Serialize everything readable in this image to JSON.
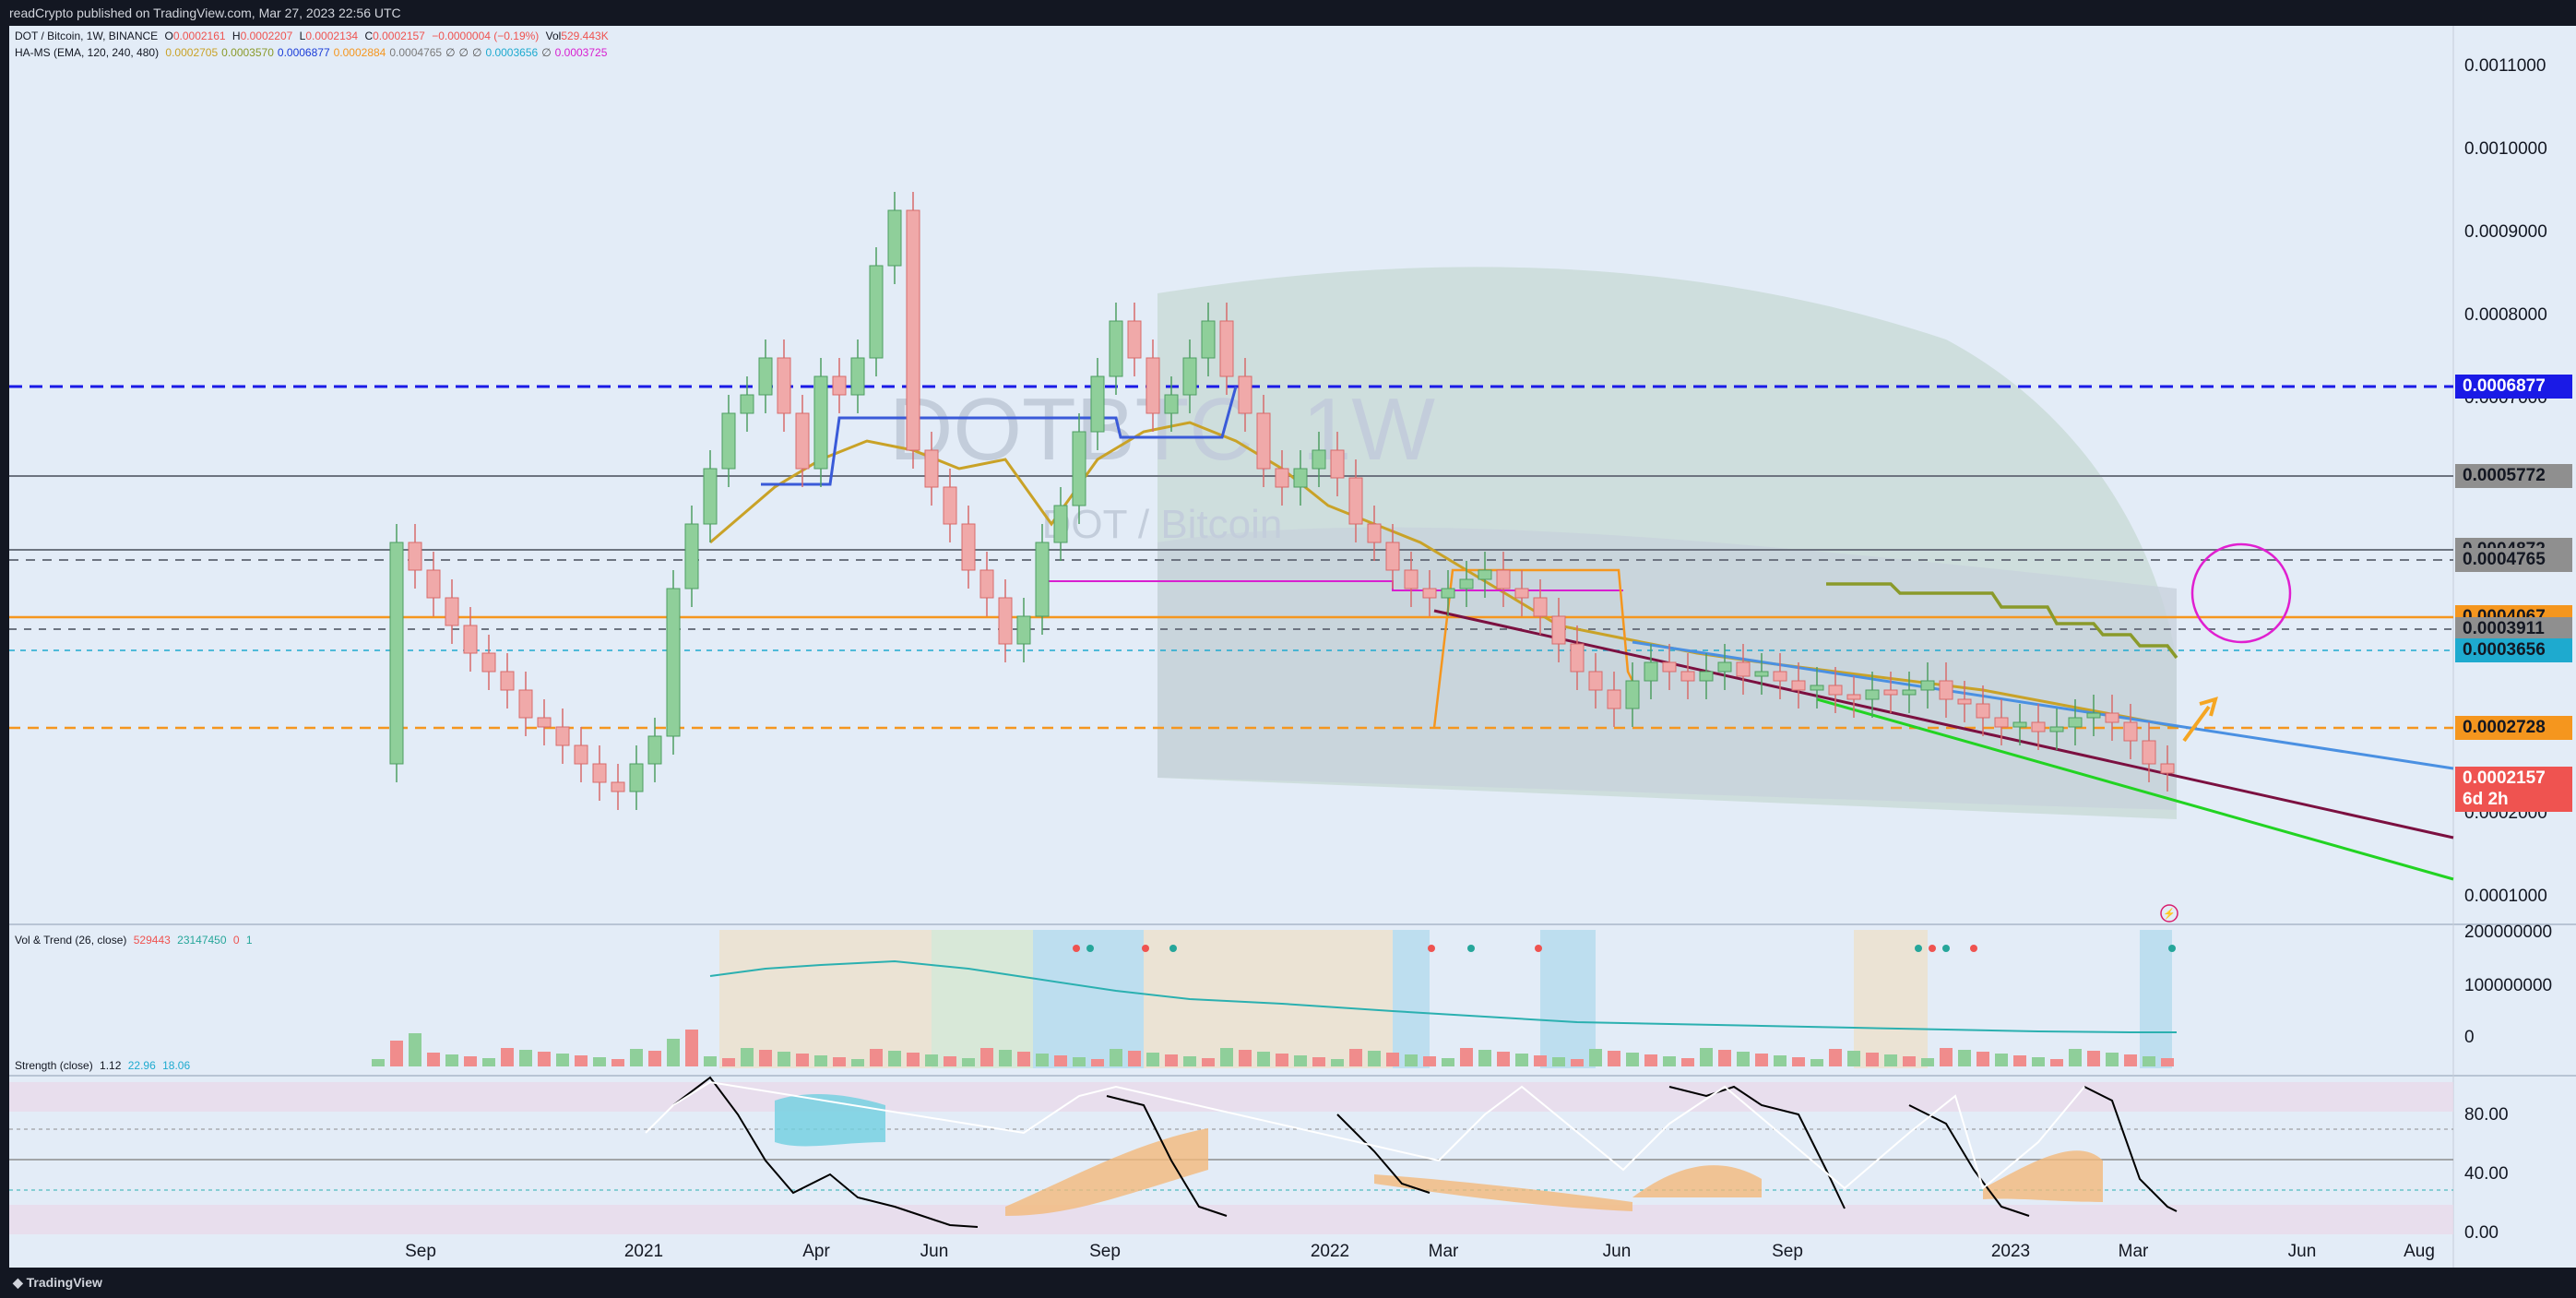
{
  "header": {
    "published": "readCrypto published on TradingView.com, Mar 27, 2023 22:56 UTC"
  },
  "symbol": {
    "name": "DOT / Bitcoin, 1W, BINANCE",
    "open_label": "O",
    "open": "0.0002161",
    "high_label": "H",
    "high": "0.0002207",
    "low_label": "L",
    "low": "0.0002134",
    "close_label": "C",
    "close": "0.0002157",
    "change": "−0.0000004 (−0.19%)",
    "vol_label": "Vol",
    "vol": "529.443K"
  },
  "indicator_hams": {
    "label": "HA-MS (EMA, 120, 240, 480)",
    "values": [
      {
        "v": "0.0002705",
        "color": "#c9a227"
      },
      {
        "v": "0.0003570",
        "color": "#8a9a2a"
      },
      {
        "v": "0.0006877",
        "color": "#1a3cd8"
      },
      {
        "v": "0.0002884",
        "color": "#f5961e"
      },
      {
        "v": "0.0004765",
        "color": "#7a7a7a"
      },
      {
        "v": "∅",
        "color": "#555555"
      },
      {
        "v": "∅",
        "color": "#555555"
      },
      {
        "v": "∅",
        "color": "#555555"
      },
      {
        "v": "0.0003656",
        "color": "#1eaacf"
      },
      {
        "v": "∅",
        "color": "#555555"
      },
      {
        "v": "0.0003725",
        "color": "#d81fd0"
      }
    ]
  },
  "watermark": {
    "big": "DOTBTC, 1W",
    "small": "DOT / Bitcoin"
  },
  "price_axis": {
    "ticks": [
      "0.0011000",
      "0.0010000",
      "0.0009000",
      "0.0008000",
      "0.0007000",
      "0.0006000",
      "0.0005000",
      "0.0004000",
      "0.0003000",
      "0.0002000",
      "0.0001000"
    ],
    "labels": [
      {
        "text": "0.0006877",
        "bg": "#1a1ae6",
        "fg": "#ffffff"
      },
      {
        "text": "0.0005772",
        "bg": "#8f8f8f",
        "fg": "#131722"
      },
      {
        "text": "0.0004872",
        "bg": "#8f8f8f",
        "fg": "#131722"
      },
      {
        "text": "0.0004765",
        "bg": "#8f8f8f",
        "fg": "#131722"
      },
      {
        "text": "0.0004067",
        "bg": "#f5961e",
        "fg": "#131722"
      },
      {
        "text": "0.0003911",
        "bg": "#8f8f8f",
        "fg": "#131722"
      },
      {
        "text": "0.0003656",
        "bg": "#1eaacf",
        "fg": "#131722"
      },
      {
        "text": "0.0002728",
        "bg": "#f5961e",
        "fg": "#131722"
      },
      {
        "text": "0.0002157",
        "bg": "#ef5350",
        "fg": "#ffffff"
      },
      {
        "text": "6d 2h",
        "bg": "#ef5350",
        "fg": "#ffffff"
      }
    ]
  },
  "vol_pane": {
    "label": "Vol & Trend (26, close)",
    "v1": "529443",
    "v2": "23147450",
    "v3": "0",
    "v4": "1",
    "ticks": [
      "200000000",
      "100000000",
      "0"
    ]
  },
  "strength_pane": {
    "label": "Strength (close)",
    "v1": "1.12",
    "v2": "22.96",
    "v3": "18.06",
    "ticks": [
      "80.00",
      "40.00",
      "0.00"
    ]
  },
  "time_axis": [
    "Sep",
    "2021",
    "Apr",
    "Jun",
    "Sep",
    "2022",
    "Mar",
    "Jun",
    "Sep",
    "2023",
    "Mar",
    "Jun",
    "Aug"
  ],
  "footer": {
    "brand": "TradingView"
  },
  "colors": {
    "up": "#26a69a",
    "down": "#ef5350",
    "bg": "#e3ecf7",
    "dark": "#131722"
  }
}
